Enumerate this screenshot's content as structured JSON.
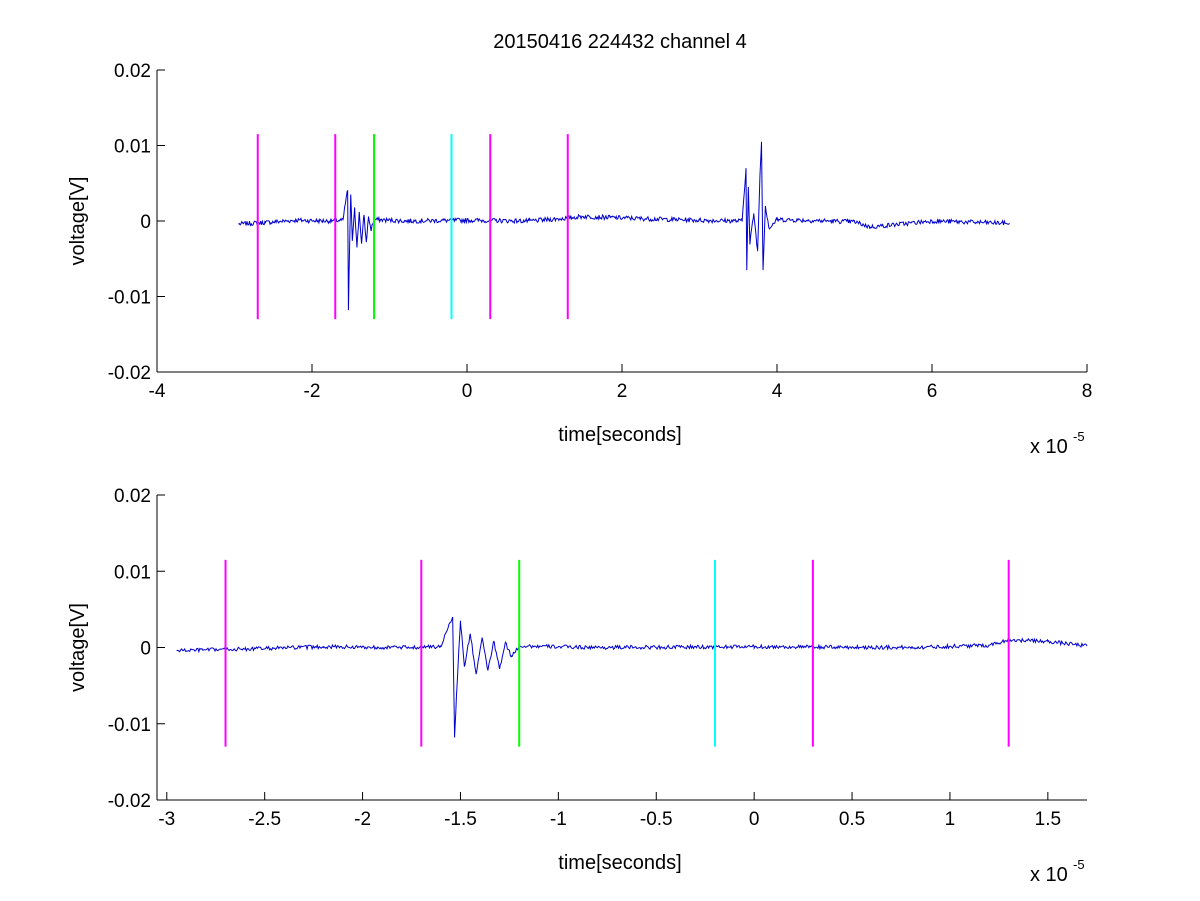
{
  "title": "20150416 224432 channel 4",
  "chart_data": [
    {
      "type": "line",
      "title": "20150416 224432 channel 4",
      "xlabel": "time[seconds]",
      "ylabel": "voltage[V]",
      "x_multiplier": "x 10",
      "x_multiplier_exp": "-5",
      "xlim": [
        -4e-05,
        8e-05
      ],
      "ylim": [
        -0.02,
        0.02
      ],
      "x_ticks": [
        -4e-05,
        -2e-05,
        0,
        2e-05,
        4e-05,
        6e-05,
        8e-05
      ],
      "x_tick_labels": [
        "-4",
        "-2",
        "0",
        "2",
        "4",
        "6",
        "8"
      ],
      "y_ticks": [
        -0.02,
        -0.01,
        0,
        0.01,
        0.02
      ],
      "y_tick_labels": [
        "-0.02",
        "-0.01",
        "0",
        "0.01",
        "0.02"
      ],
      "grid": false,
      "markers": [
        {
          "x": -2.7e-05,
          "color": "#ff00ff",
          "y_range": [
            -0.013,
            0.0115
          ]
        },
        {
          "x": -1.7e-05,
          "color": "#ff00ff",
          "y_range": [
            -0.013,
            0.0115
          ]
        },
        {
          "x": -1.2e-05,
          "color": "#00ff00",
          "y_range": [
            -0.013,
            0.0115
          ]
        },
        {
          "x": -2e-06,
          "color": "#00ffff",
          "y_range": [
            -0.013,
            0.0115
          ]
        },
        {
          "x": 3e-06,
          "color": "#ff00ff",
          "y_range": [
            -0.013,
            0.0115
          ]
        },
        {
          "x": 1.3e-05,
          "color": "#ff00ff",
          "y_range": [
            -0.013,
            0.0115
          ]
        }
      ],
      "series": [
        {
          "color": "#0000cc",
          "x_start": -2.95e-05,
          "x_end": 7e-05,
          "noise": 0.0006,
          "points": [
            [
              -2.95e-05,
              -0.0004
            ],
            [
              -2.6e-05,
              -0.0002
            ],
            [
              -2.2e-05,
              0.0001
            ],
            [
              -1.8e-05,
              0.0
            ],
            [
              -1.6e-05,
              0.0001
            ],
            [
              -1.56e-05,
              0.003
            ],
            [
              -1.54e-05,
              0.004
            ],
            [
              -1.53e-05,
              -0.0118
            ],
            [
              -1.52e-05,
              -0.006
            ],
            [
              -1.5e-05,
              0.0035
            ],
            [
              -1.48e-05,
              -0.0025
            ],
            [
              -1.45e-05,
              0.0018
            ],
            [
              -1.42e-05,
              -0.0035
            ],
            [
              -1.39e-05,
              0.0012
            ],
            [
              -1.36e-05,
              -0.003
            ],
            [
              -1.33e-05,
              0.0008
            ],
            [
              -1.3e-05,
              -0.0028
            ],
            [
              -1.27e-05,
              0.0006
            ],
            [
              -1.24e-05,
              -0.0012
            ],
            [
              -1.2e-05,
              0.0002
            ],
            [
              -8e-06,
              0.0
            ],
            [
              0.0,
              0.0001
            ],
            [
              8e-06,
              0.0
            ],
            [
              1.2e-05,
              0.0003
            ],
            [
              1.5e-05,
              0.0006
            ],
            [
              2.3e-05,
              0.0003
            ],
            [
              3e-05,
              0.0001
            ],
            [
              3.55e-05,
              0.0
            ],
            [
              3.6e-05,
              0.007
            ],
            [
              3.61e-05,
              -0.0065
            ],
            [
              3.63e-05,
              0.0045
            ],
            [
              3.65e-05,
              -0.003
            ],
            [
              3.7e-05,
              0.001
            ],
            [
              3.75e-05,
              -0.004
            ],
            [
              3.78e-05,
              0.006
            ],
            [
              3.8e-05,
              0.0105
            ],
            [
              3.82e-05,
              -0.0065
            ],
            [
              3.85e-05,
              0.002
            ],
            [
              3.9e-05,
              -0.001
            ],
            [
              4e-05,
              0.0002
            ],
            [
              5e-05,
              -0.0001
            ],
            [
              5.2e-05,
              -0.0008
            ],
            [
              6e-05,
              0.0
            ],
            [
              7e-05,
              -0.0003
            ]
          ]
        }
      ]
    },
    {
      "type": "line",
      "xlabel": "time[seconds]",
      "ylabel": "voltage[V]",
      "x_multiplier": "x 10",
      "x_multiplier_exp": "-5",
      "xlim": [
        -3.05e-05,
        1.7e-05
      ],
      "ylim": [
        -0.02,
        0.02
      ],
      "x_ticks": [
        -3e-05,
        -2.5e-05,
        -2e-05,
        -1.5e-05,
        -1e-05,
        -5e-06,
        0,
        5e-06,
        1e-05,
        1.5e-05
      ],
      "x_tick_labels": [
        "-3",
        "-2.5",
        "-2",
        "-1.5",
        "-1",
        "-0.5",
        "0",
        "0.5",
        "1",
        "1.5"
      ],
      "y_ticks": [
        -0.02,
        -0.01,
        0,
        0.01,
        0.02
      ],
      "y_tick_labels": [
        "-0.02",
        "-0.01",
        "0",
        "0.01",
        "0.02"
      ],
      "grid": false,
      "markers": [
        {
          "x": -2.7e-05,
          "color": "#ff00ff",
          "y_range": [
            -0.013,
            0.0115
          ]
        },
        {
          "x": -1.7e-05,
          "color": "#ff00ff",
          "y_range": [
            -0.013,
            0.0115
          ]
        },
        {
          "x": -1.2e-05,
          "color": "#00ff00",
          "y_range": [
            -0.013,
            0.0115
          ]
        },
        {
          "x": -2e-06,
          "color": "#00ffff",
          "y_range": [
            -0.013,
            0.0115
          ]
        },
        {
          "x": 3e-06,
          "color": "#ff00ff",
          "y_range": [
            -0.013,
            0.0115
          ]
        },
        {
          "x": 1.3e-05,
          "color": "#ff00ff",
          "y_range": [
            -0.013,
            0.0115
          ]
        }
      ],
      "series": [
        {
          "color": "#0000cc",
          "x_start": -2.95e-05,
          "x_end": 1.7e-05,
          "noise": 0.0005,
          "points": [
            [
              -2.95e-05,
              -0.0004
            ],
            [
              -2.6e-05,
              -0.0002
            ],
            [
              -2.2e-05,
              0.0001
            ],
            [
              -1.8e-05,
              0.0
            ],
            [
              -1.6e-05,
              0.0001
            ],
            [
              -1.56e-05,
              0.003
            ],
            [
              -1.54e-05,
              0.004
            ],
            [
              -1.53e-05,
              -0.0118
            ],
            [
              -1.52e-05,
              -0.006
            ],
            [
              -1.5e-05,
              0.0035
            ],
            [
              -1.48e-05,
              -0.0025
            ],
            [
              -1.45e-05,
              0.0018
            ],
            [
              -1.42e-05,
              -0.0035
            ],
            [
              -1.39e-05,
              0.0012
            ],
            [
              -1.36e-05,
              -0.003
            ],
            [
              -1.33e-05,
              0.0008
            ],
            [
              -1.3e-05,
              -0.0028
            ],
            [
              -1.27e-05,
              0.0006
            ],
            [
              -1.24e-05,
              -0.0012
            ],
            [
              -1.2e-05,
              0.0002
            ],
            [
              -8e-06,
              0.0
            ],
            [
              0.0,
              0.0001
            ],
            [
              8e-06,
              0.0
            ],
            [
              1.2e-05,
              0.0003
            ],
            [
              1.3e-05,
              0.001
            ],
            [
              1.5e-05,
              0.0008
            ],
            [
              1.7e-05,
              0.0002
            ]
          ]
        }
      ]
    }
  ]
}
